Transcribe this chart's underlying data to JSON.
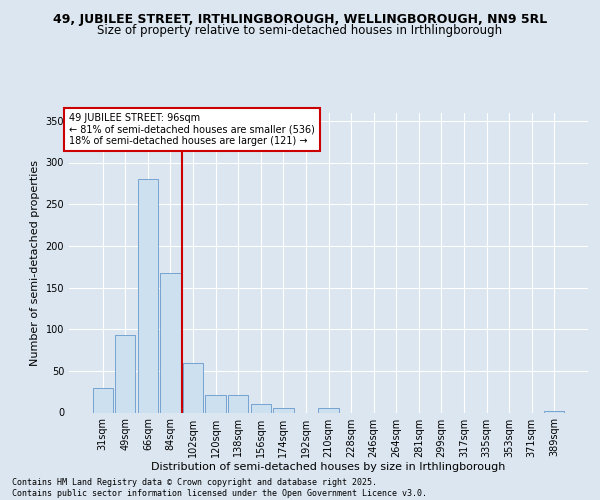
{
  "title_line1": "49, JUBILEE STREET, IRTHLINGBOROUGH, WELLINGBOROUGH, NN9 5RL",
  "title_line2": "Size of property relative to semi-detached houses in Irthlingborough",
  "xlabel": "Distribution of semi-detached houses by size in Irthlingborough",
  "ylabel": "Number of semi-detached properties",
  "categories": [
    "31sqm",
    "49sqm",
    "66sqm",
    "84sqm",
    "102sqm",
    "120sqm",
    "138sqm",
    "156sqm",
    "174sqm",
    "192sqm",
    "210sqm",
    "228sqm",
    "246sqm",
    "264sqm",
    "281sqm",
    "299sqm",
    "317sqm",
    "335sqm",
    "353sqm",
    "371sqm",
    "389sqm"
  ],
  "values": [
    30,
    93,
    280,
    167,
    60,
    21,
    21,
    10,
    5,
    0,
    5,
    0,
    0,
    0,
    0,
    0,
    0,
    0,
    0,
    0,
    2
  ],
  "bar_color": "#cce0f0",
  "bar_edge_color": "#6699cc",
  "property_line_x": 3.5,
  "line_color": "#cc0000",
  "annotation_text": "49 JUBILEE STREET: 96sqm\n← 81% of semi-detached houses are smaller (536)\n18% of semi-detached houses are larger (121) →",
  "annotation_box_color": "#ffffff",
  "annotation_border_color": "#cc0000",
  "ylim": [
    0,
    360
  ],
  "yticks": [
    0,
    50,
    100,
    150,
    200,
    250,
    300,
    350
  ],
  "background_color": "#dce6f0",
  "plot_bg_color": "#dce6f0",
  "footer_text": "Contains HM Land Registry data © Crown copyright and database right 2025.\nContains public sector information licensed under the Open Government Licence v3.0.",
  "title_fontsize": 9,
  "subtitle_fontsize": 8.5,
  "tick_fontsize": 7,
  "label_fontsize": 8,
  "annotation_fontsize": 7,
  "footer_fontsize": 6
}
